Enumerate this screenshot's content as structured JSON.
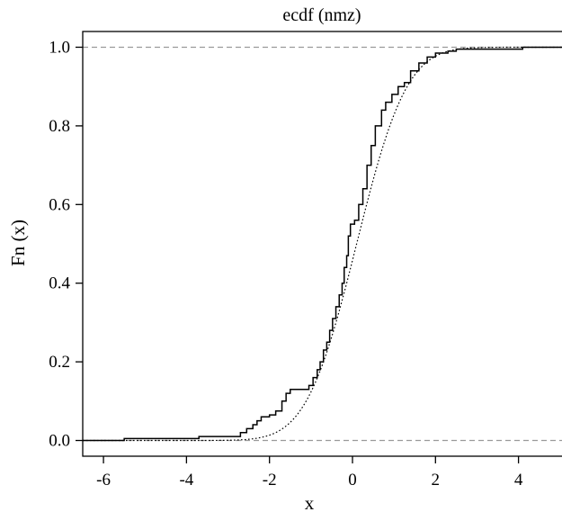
{
  "chart_data": {
    "type": "line",
    "title": "ecdf (nmz)",
    "xlabel": "x",
    "ylabel": "Fn (x)",
    "xlim": [
      -6.5,
      5.2
    ],
    "ylim": [
      -0.04,
      1.04
    ],
    "x_ticks": [
      "-6",
      "-4",
      "-2",
      "0",
      "2",
      "4"
    ],
    "y_ticks": [
      "0.0",
      "0.2",
      "0.4",
      "0.6",
      "0.8",
      "1.0"
    ],
    "reference_lines": [
      0,
      1
    ],
    "grid": false,
    "legend": "none",
    "series": [
      {
        "style": "step",
        "points": [
          [
            -7.0,
            0.0
          ],
          [
            -5.5,
            0.005
          ],
          [
            -3.7,
            0.01
          ],
          [
            -2.7,
            0.02
          ],
          [
            -2.55,
            0.03
          ],
          [
            -2.4,
            0.04
          ],
          [
            -2.3,
            0.05
          ],
          [
            -2.2,
            0.06
          ],
          [
            -2.0,
            0.065
          ],
          [
            -1.85,
            0.075
          ],
          [
            -1.7,
            0.1
          ],
          [
            -1.6,
            0.12
          ],
          [
            -1.5,
            0.13
          ],
          [
            -1.05,
            0.14
          ],
          [
            -0.95,
            0.16
          ],
          [
            -0.85,
            0.18
          ],
          [
            -0.78,
            0.2
          ],
          [
            -0.7,
            0.23
          ],
          [
            -0.62,
            0.25
          ],
          [
            -0.55,
            0.28
          ],
          [
            -0.48,
            0.31
          ],
          [
            -0.4,
            0.34
          ],
          [
            -0.32,
            0.37
          ],
          [
            -0.25,
            0.4
          ],
          [
            -0.2,
            0.44
          ],
          [
            -0.14,
            0.47
          ],
          [
            -0.1,
            0.52
          ],
          [
            -0.05,
            0.55
          ],
          [
            0.05,
            0.56
          ],
          [
            0.15,
            0.6
          ],
          [
            0.25,
            0.64
          ],
          [
            0.35,
            0.7
          ],
          [
            0.45,
            0.75
          ],
          [
            0.55,
            0.8
          ],
          [
            0.7,
            0.84
          ],
          [
            0.8,
            0.86
          ],
          [
            0.95,
            0.88
          ],
          [
            1.1,
            0.9
          ],
          [
            1.25,
            0.91
          ],
          [
            1.4,
            0.94
          ],
          [
            1.6,
            0.96
          ],
          [
            1.8,
            0.975
          ],
          [
            2.0,
            0.985
          ],
          [
            2.3,
            0.99
          ],
          [
            2.5,
            0.995
          ],
          [
            4.1,
            1.0
          ],
          [
            6.0,
            1.0
          ]
        ]
      },
      {
        "style": "dotted",
        "distribution": "normal",
        "mean": 0.1,
        "sd": 0.95
      }
    ],
    "colors": {
      "ecdf": "#000000",
      "reference": "#9a9a9a",
      "axes": "#000000"
    }
  }
}
